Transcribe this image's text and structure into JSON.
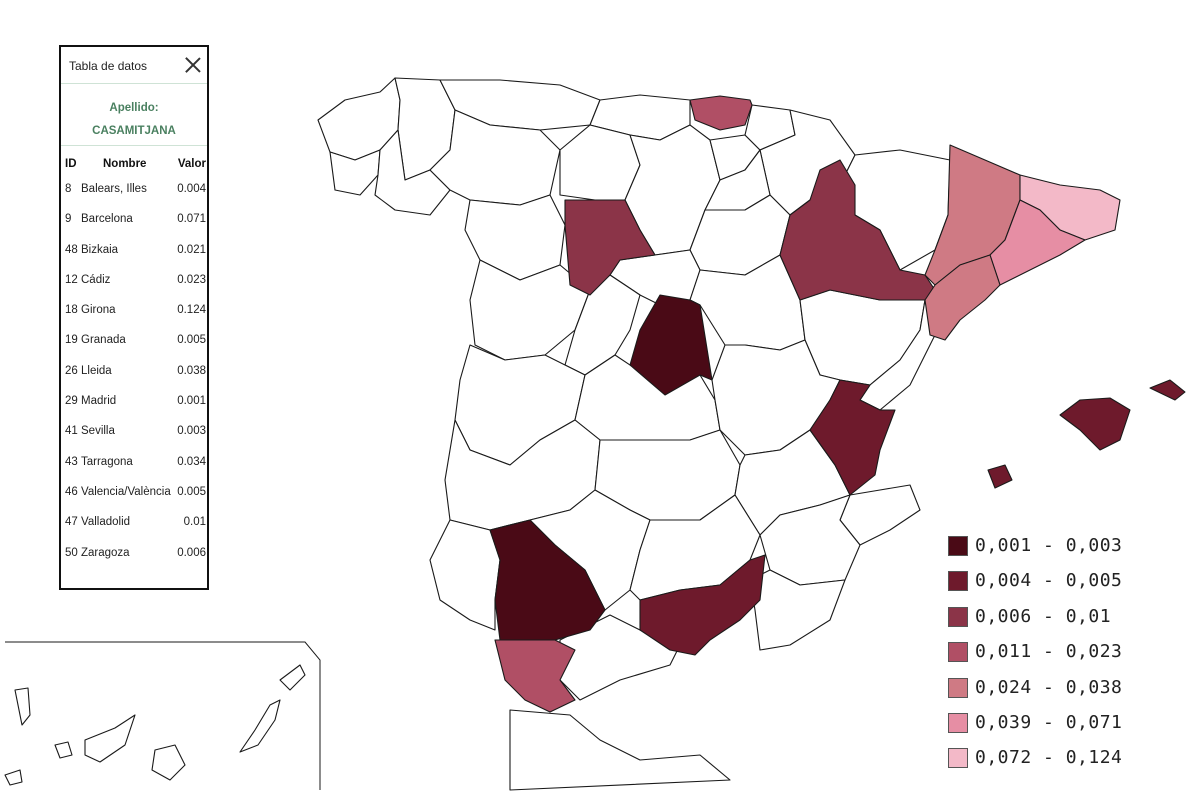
{
  "panel": {
    "title": "Tabla de datos",
    "subtitle_label": "Apellido:",
    "surname": "CASAMITJANA",
    "columns": [
      "ID",
      "Nombre",
      "Valor"
    ],
    "rows": [
      {
        "id": "8",
        "name": "Balears, Illes",
        "value": "0.004"
      },
      {
        "id": "9",
        "name": "Barcelona",
        "value": "0.071"
      },
      {
        "id": "48",
        "name": "Bizkaia",
        "value": "0.021"
      },
      {
        "id": "12",
        "name": "Cádiz",
        "value": "0.023"
      },
      {
        "id": "18",
        "name": "Girona",
        "value": "0.124"
      },
      {
        "id": "19",
        "name": "Granada",
        "value": "0.005"
      },
      {
        "id": "26",
        "name": "Lleida",
        "value": "0.038"
      },
      {
        "id": "29",
        "name": "Madrid",
        "value": "0.001"
      },
      {
        "id": "41",
        "name": "Sevilla",
        "value": "0.003"
      },
      {
        "id": "43",
        "name": "Tarragona",
        "value": "0.034"
      },
      {
        "id": "46",
        "name": "Valencia/València",
        "value": "0.005"
      },
      {
        "id": "47",
        "name": "Valladolid",
        "value": "0.01"
      },
      {
        "id": "50",
        "name": "Zaragoza",
        "value": "0.006"
      }
    ]
  },
  "legend": [
    {
      "label": "0,001 - 0,003",
      "color": "#4a0a16"
    },
    {
      "label": "0,004 - 0,005",
      "color": "#6e1a2c"
    },
    {
      "label": "0,006 - 0,01",
      "color": "#8b3448"
    },
    {
      "label": "0,011 - 0,023",
      "color": "#b04f65"
    },
    {
      "label": "0,024 - 0,038",
      "color": "#cf7a84"
    },
    {
      "label": "0,039 - 0,071",
      "color": "#e68ea4"
    },
    {
      "label": "0,072 - 0,124",
      "color": "#f3b9c8"
    }
  ],
  "map": {
    "shaded_provinces": [
      {
        "name": "Madrid",
        "class": 0
      },
      {
        "name": "Sevilla",
        "class": 0
      },
      {
        "name": "Balears, Illes",
        "class": 1
      },
      {
        "name": "Granada",
        "class": 1
      },
      {
        "name": "Valencia/València",
        "class": 1
      },
      {
        "name": "Zaragoza",
        "class": 2
      },
      {
        "name": "Valladolid",
        "class": 2
      },
      {
        "name": "Bizkaia",
        "class": 3
      },
      {
        "name": "Cádiz",
        "class": 3
      },
      {
        "name": "Tarragona",
        "class": 4
      },
      {
        "name": "Lleida",
        "class": 4
      },
      {
        "name": "Barcelona",
        "class": 5
      },
      {
        "name": "Girona",
        "class": 6
      }
    ]
  }
}
